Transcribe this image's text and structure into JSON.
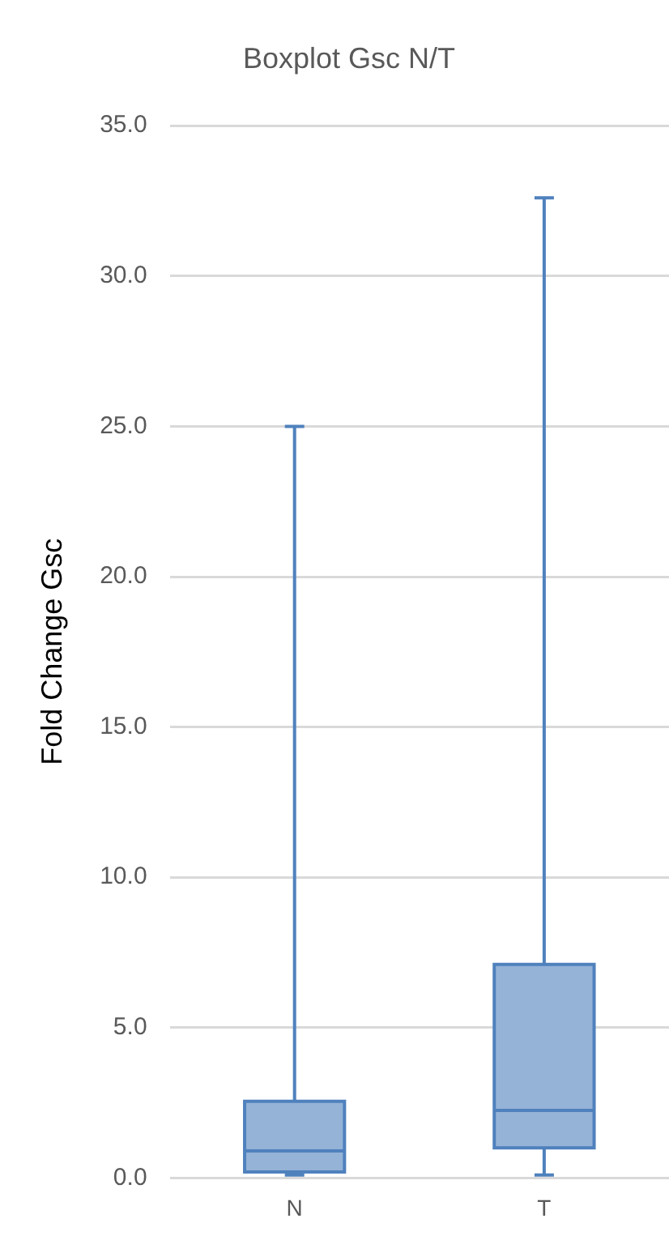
{
  "chart_data": {
    "type": "box",
    "title": "Boxplot Gsc N/T",
    "ylabel": "Fold Change Gsc",
    "categories": [
      "N",
      "T"
    ],
    "boxes": [
      {
        "low": 0.1,
        "q1": 0.2,
        "median": 0.9,
        "q3": 2.55,
        "high": 25.0
      },
      {
        "low": 0.1,
        "q1": 1.0,
        "median": 2.25,
        "q3": 7.1,
        "high": 32.6
      }
    ],
    "color": "#95b3d7",
    "ylim": [
      0,
      35
    ],
    "yticks": [
      {
        "value": 0,
        "label": "0.0"
      },
      {
        "value": 5,
        "label": "5.0"
      },
      {
        "value": 10,
        "label": "10.0"
      },
      {
        "value": 15,
        "label": "15.0"
      },
      {
        "value": 20,
        "label": "20.0"
      },
      {
        "value": 25,
        "label": "25.0"
      },
      {
        "value": 30,
        "label": "30.0"
      },
      {
        "value": 35,
        "label": "35.0"
      }
    ],
    "grid": "y",
    "legend": false
  }
}
